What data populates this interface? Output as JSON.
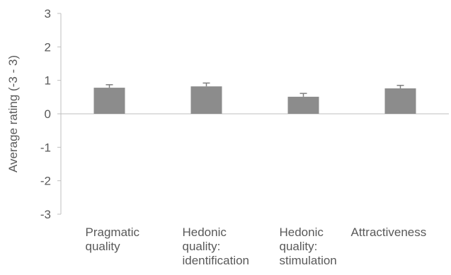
{
  "chart_data": {
    "type": "bar",
    "title": "",
    "xlabel": "",
    "ylabel": "Average rating (-3 - 3)",
    "ylim": [
      -3,
      3
    ],
    "yticks": [
      3,
      2,
      1,
      0,
      -1,
      -2,
      -3
    ],
    "categories": [
      [
        "Pragmatic",
        "quality"
      ],
      [
        "Hedonic",
        "quality:",
        "identification"
      ],
      [
        "Hedonic",
        "quality:",
        "stimulation"
      ],
      [
        "Attractiveness"
      ]
    ],
    "values": [
      0.78,
      0.82,
      0.51,
      0.76
    ],
    "error": [
      0.09,
      0.1,
      0.1,
      0.09
    ],
    "grid": false,
    "colors": {
      "bar": "#8c8c8c",
      "error_bar": "#7f7f7f",
      "axis": "#bfbfbf",
      "text": "#595959"
    }
  }
}
